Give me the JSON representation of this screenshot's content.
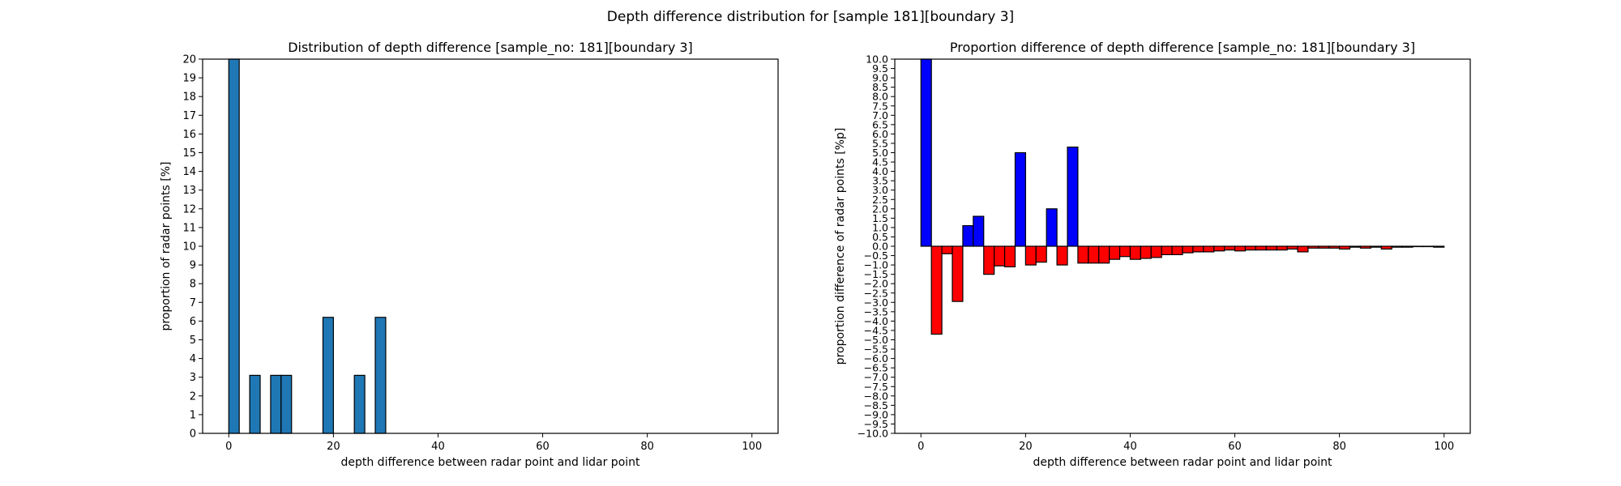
{
  "suptitle": "Depth difference distribution for [sample 181][boundary 3]",
  "colors": {
    "bar": "#1f77b4",
    "positive": "#0000ff",
    "negative": "#ff0000",
    "edge": "#000000"
  },
  "chart_data": [
    {
      "type": "bar",
      "title": "Distribution of depth difference [sample_no: 181][boundary 3]",
      "xlabel": "depth difference between radar point and lidar point",
      "ylabel": "proportion of radar points [%]",
      "xlim": [
        -5,
        105
      ],
      "ylim": [
        0,
        20
      ],
      "xticks": [
        0,
        20,
        40,
        60,
        80,
        100
      ],
      "yticks": [
        0,
        1,
        2,
        3,
        4,
        5,
        6,
        7,
        8,
        9,
        10,
        11,
        12,
        13,
        14,
        15,
        16,
        17,
        18,
        19,
        20
      ],
      "bin_width": 2,
      "x": [
        1,
        5,
        9,
        11,
        19,
        25,
        29
      ],
      "values": [
        20,
        3.1,
        3.1,
        3.1,
        6.2,
        3.1,
        6.2
      ],
      "grid": false
    },
    {
      "type": "bar",
      "title": "Proportion difference of depth difference [sample_no: 181][boundary 3]",
      "xlabel": "depth difference between radar point and lidar point",
      "ylabel": "proportion difference of radar points [%p]",
      "xlim": [
        -5,
        105
      ],
      "ylim": [
        -10,
        10
      ],
      "xticks": [
        0,
        20,
        40,
        60,
        80,
        100
      ],
      "yticks": [
        -10.0,
        -9.5,
        -9.0,
        -8.5,
        -8.0,
        -7.5,
        -7.0,
        -6.5,
        -6.0,
        -5.5,
        -5.0,
        -4.5,
        -4.0,
        -3.5,
        -3.0,
        -2.5,
        -2.0,
        -1.5,
        -1.0,
        -0.5,
        0.0,
        0.5,
        1.0,
        1.5,
        2.0,
        2.5,
        3.0,
        3.5,
        4.0,
        4.5,
        5.0,
        5.5,
        6.0,
        6.5,
        7.0,
        7.5,
        8.0,
        8.5,
        9.0,
        9.5,
        10.0
      ],
      "bin_width": 2,
      "x": [
        1,
        3,
        5,
        7,
        9,
        11,
        13,
        15,
        17,
        19,
        21,
        23,
        25,
        27,
        29,
        31,
        33,
        35,
        37,
        39,
        41,
        43,
        45,
        47,
        49,
        51,
        53,
        55,
        57,
        59,
        61,
        63,
        65,
        67,
        69,
        71,
        73,
        75,
        77,
        79,
        81,
        83,
        85,
        87,
        89,
        91,
        93,
        95,
        97,
        99
      ],
      "values": [
        10.0,
        -4.7,
        -0.4,
        -2.95,
        1.1,
        1.6,
        -1.5,
        -1.05,
        -1.1,
        5.0,
        -1.0,
        -0.85,
        2.0,
        -1.0,
        5.3,
        -0.9,
        -0.9,
        -0.9,
        -0.7,
        -0.55,
        -0.7,
        -0.65,
        -0.6,
        -0.45,
        -0.45,
        -0.35,
        -0.3,
        -0.3,
        -0.25,
        -0.2,
        -0.25,
        -0.2,
        -0.2,
        -0.2,
        -0.2,
        -0.15,
        -0.3,
        -0.1,
        -0.1,
        -0.1,
        -0.15,
        -0.05,
        -0.1,
        -0.05,
        -0.15,
        -0.05,
        -0.05,
        -0.02,
        -0.02,
        -0.05
      ],
      "grid": false
    }
  ]
}
